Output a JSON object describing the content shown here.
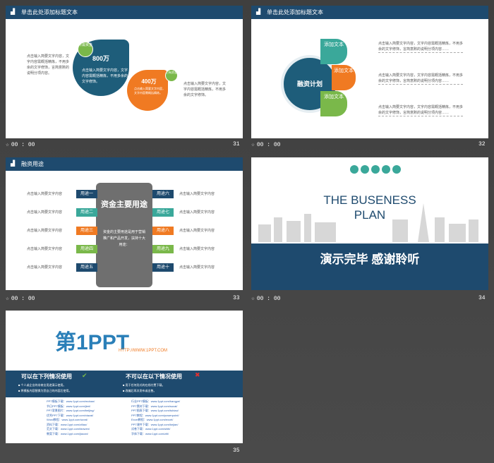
{
  "slides": [
    {
      "number": "31",
      "time": "00 : 00",
      "header": "单击此处添加标题文本",
      "left_text": "点击输入简要文字内容，文字内容需概括精炼，不用多余的文字修饰，言简意赅的说明分项内容。",
      "right_text": "点击输入简要文字内容，文字内容需概括精炼，不用多余的文字修饰。",
      "big_value": "800万",
      "big_tag": "所需资金",
      "big_desc": "点击输入简要文字内容，文字内容需概括精炼，不用多余的文字修饰。",
      "small_value": "400万",
      "small_tag": "已有资金",
      "small_desc": "点击输入简要文字内容，文字内容需概括精炼。"
    },
    {
      "number": "32",
      "time": "00 : 00",
      "header": "单击此处添加标题文本",
      "center": "融资计划",
      "items": [
        {
          "label": "添加文本",
          "color": "#3aa89a"
        },
        {
          "label": "添加文本",
          "color": "#f07a22"
        },
        {
          "label": "添加文本",
          "color": "#7ab84a"
        }
      ],
      "desc": "点击输入简要文字内容，文字内容需概括精炼，不用多余的文字修饰，言简意赅的说明分项内容……"
    },
    {
      "number": "33",
      "time": "00 : 00",
      "header": "融资用途",
      "title": "资金主要用途",
      "body": "资金的主要用途是用于营销推广和产品开发，扶持十大用途：",
      "left": [
        "用途一",
        "用途二",
        "用途三",
        "用途四",
        "用途五"
      ],
      "right": [
        "用途六",
        "用途七",
        "用途八",
        "用途九",
        "用途十"
      ],
      "item_text": "点击输入简要文字内容"
    },
    {
      "number": "34",
      "time": "00 : 00",
      "title": "THE BUSENESS PLAN",
      "thanks": "演示完毕 感谢聆听"
    },
    {
      "number": "35",
      "logo": "第1PPT",
      "logo_url": "HTTP://WWW.1PPT.COM",
      "can_title": "可以在下列情况使用",
      "cannot_title": "不可以在以下情况使用",
      "can_items": [
        "■ 个人或企业的非商业用途演示使用。",
        "■ 将模板内容替换为您自己的内容后使用。"
      ],
      "cannot_items": [
        "■ 用于任何形式的在线付费下载。",
        "■ 改编后再次发布或出售。"
      ],
      "links_left": [
        "PPT模板下载：www.1ppt.com/moban/",
        "节日PPT模板：www.1ppt.com/jieri/",
        "PPT背景图片：www.1ppt.com/beijing/",
        "优秀PPT下载：www.1ppt.com/xiazai/",
        "Word教程：www.1ppt.com/word/",
        "资料下载：www.1ppt.com/ziliao/",
        "范文下载：www.1ppt.com/fanwen/",
        "教案下载：www.1ppt.com/jiaoan/"
      ],
      "links_right": [
        "行业PPT模板：www.1ppt.com/hangye/",
        "PPT素材下载：www.1ppt.com/sucai/",
        "PPT图表下载：www.1ppt.com/tubiao/",
        "PPT教程：www.1ppt.com/powerpoint/",
        "Excel教程：www.1ppt.com/excel/",
        "PPT课件下载：www.1ppt.com/kejian/",
        "试卷下载：www.1ppt.com/shiti/",
        "字体下载：www.1ppt.com/ziti/"
      ]
    }
  ],
  "colors": {
    "navy": "#1e4a6e",
    "teal": "#3aa89a",
    "orange": "#f07a22",
    "green": "#7ab84a",
    "blue": "#2a7fb8",
    "gray": "#777"
  }
}
